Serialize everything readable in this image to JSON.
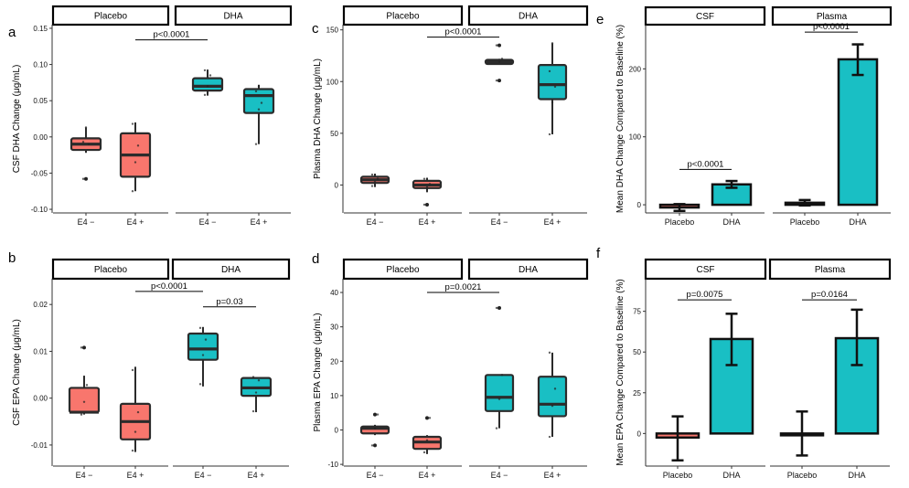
{
  "colors": {
    "placebo": "#F8766D",
    "dha": "#19BFC4",
    "edge": "#2b2b2b"
  },
  "chart_data": [
    {
      "panel": "a",
      "type": "box",
      "ylabel": "CSF DHA Change (μg/mL)",
      "ylim": [
        -0.105,
        0.155
      ],
      "yticks": [
        -0.1,
        -0.05,
        0.0,
        0.05,
        0.1,
        0.15
      ],
      "ytick_labels": [
        "-0.10",
        "-0.05",
        "0.00",
        "0.05",
        "0.10",
        "0.15"
      ],
      "facets": [
        "Placebo",
        "DHA"
      ],
      "groups": [
        {
          "facet": 0,
          "label": "E4 −",
          "color": "placebo",
          "q1": -0.018,
          "median": -0.01,
          "q3": -0.002,
          "whisker_low": -0.022,
          "whisker_high": 0.013,
          "points": [
            -0.058,
            0.013,
            -0.01,
            -0.007
          ],
          "outliers": [
            -0.058
          ]
        },
        {
          "facet": 0,
          "label": "E4 +",
          "color": "placebo",
          "q1": -0.055,
          "median": -0.025,
          "q3": 0.005,
          "whisker_low": -0.075,
          "whisker_high": 0.02,
          "points": [
            -0.075,
            -0.035,
            -0.012,
            0.018
          ],
          "outliers": []
        },
        {
          "facet": 1,
          "label": "E4 −",
          "color": "dha",
          "q1": 0.064,
          "median": 0.07,
          "q3": 0.081,
          "whisker_low": 0.057,
          "whisker_high": 0.093,
          "points": [
            0.058,
            0.07,
            0.085,
            0.092
          ],
          "outliers": []
        },
        {
          "facet": 1,
          "label": "E4 +",
          "color": "dha",
          "q1": 0.033,
          "median": 0.057,
          "q3": 0.066,
          "whisker_low": -0.01,
          "whisker_high": 0.072,
          "points": [
            -0.01,
            0.038,
            0.047,
            0.063,
            0.07
          ],
          "outliers": []
        }
      ],
      "brackets": [
        {
          "from": 1,
          "to": 2,
          "y": 0.134,
          "label": "p<0.0001"
        }
      ]
    },
    {
      "panel": "c",
      "type": "box",
      "ylabel": "Plasma DHA Change (μg/mL)",
      "ylim": [
        -27,
        155
      ],
      "yticks": [
        0,
        50,
        100,
        150
      ],
      "ytick_labels": [
        "0",
        "50",
        "100",
        "150"
      ],
      "facets": [
        "Placebo",
        "DHA"
      ],
      "groups": [
        {
          "facet": 0,
          "label": "E4 −",
          "color": "placebo",
          "q1": 2,
          "median": 5,
          "q3": 8,
          "whisker_low": -2,
          "whisker_high": 11,
          "points": [
            -1,
            3,
            6,
            10
          ],
          "outliers": []
        },
        {
          "facet": 0,
          "label": "E4 +",
          "color": "placebo",
          "q1": -3,
          "median": 0,
          "q3": 4,
          "whisker_low": -7,
          "whisker_high": 7,
          "points": [
            -19,
            -2,
            1,
            6
          ],
          "outliers": [
            -19
          ]
        },
        {
          "facet": 1,
          "label": "E4 −",
          "color": "dha",
          "q1": 117,
          "median": 119,
          "q3": 121,
          "whisker_low": 117,
          "whisker_high": 122,
          "points": [
            101,
            119,
            122,
            135
          ],
          "outliers": [
            101,
            135
          ]
        },
        {
          "facet": 1,
          "label": "E4 +",
          "color": "dha",
          "q1": 83,
          "median": 97,
          "q3": 116,
          "whisker_low": 49,
          "whisker_high": 137,
          "points": [
            49,
            80,
            95,
            110,
            137
          ],
          "outliers": []
        }
      ],
      "brackets": [
        {
          "from": 1,
          "to": 2,
          "y": 143,
          "label": "p<0.0001"
        }
      ]
    },
    {
      "panel": "e",
      "type": "bar",
      "ylabel": "Mean DHA Change Compared to Baseline (%)",
      "ylim": [
        -12,
        265
      ],
      "yticks": [
        0,
        100,
        200
      ],
      "ytick_labels": [
        "0",
        "100",
        "200"
      ],
      "facets": [
        "CSF",
        "Plasma"
      ],
      "groups": [
        {
          "facet": 0,
          "label": "Placebo",
          "color": "placebo",
          "value": -4,
          "err_low": -9,
          "err_high": 1
        },
        {
          "facet": 0,
          "label": "DHA",
          "color": "dha",
          "value": 30,
          "err_low": 25,
          "err_high": 35
        },
        {
          "facet": 1,
          "label": "Placebo",
          "color": "placebo",
          "value": 3,
          "err_low": -1,
          "err_high": 7
        },
        {
          "facet": 1,
          "label": "DHA",
          "color": "dha",
          "value": 214,
          "err_low": 191,
          "err_high": 236
        }
      ],
      "brackets": [
        {
          "from": 0,
          "to": 1,
          "y": 52,
          "label": "p<0.0001"
        },
        {
          "from": 2,
          "to": 3,
          "y": 254,
          "label": "p<0.0001"
        }
      ]
    },
    {
      "panel": "b",
      "type": "box",
      "ylabel": "CSF EPA Change (μg/mL)",
      "ylim": [
        -0.0145,
        0.0255
      ],
      "yticks": [
        -0.01,
        0.0,
        0.01,
        0.02
      ],
      "ytick_labels": [
        "-0.01",
        "0.00",
        "0.01",
        "0.02"
      ],
      "facets": [
        "Placebo",
        "DHA"
      ],
      "groups": [
        {
          "facet": 0,
          "label": "E4 −",
          "color": "placebo",
          "q1": -0.003,
          "median": -0.003,
          "q3": 0.0022,
          "whisker_low": -0.0035,
          "whisker_high": 0.0048,
          "points": [
            -0.0035,
            -0.0008,
            0.0028,
            0.0108
          ],
          "outliers": [
            0.0108
          ]
        },
        {
          "facet": 0,
          "label": "E4 +",
          "color": "placebo",
          "q1": -0.0088,
          "median": -0.005,
          "q3": -0.0012,
          "whisker_low": -0.0115,
          "whisker_high": 0.0067,
          "points": [
            -0.0112,
            -0.0072,
            -0.003,
            0.006
          ],
          "outliers": []
        },
        {
          "facet": 1,
          "label": "E4 −",
          "color": "dha",
          "q1": 0.0082,
          "median": 0.0105,
          "q3": 0.0138,
          "whisker_low": 0.0025,
          "whisker_high": 0.0152,
          "points": [
            0.003,
            0.0092,
            0.0125,
            0.015
          ],
          "outliers": []
        },
        {
          "facet": 1,
          "label": "E4 +",
          "color": "dha",
          "q1": 0.0005,
          "median": 0.0022,
          "q3": 0.0043,
          "whisker_low": -0.003,
          "whisker_high": 0.0045,
          "points": [
            -0.0028,
            0.0012,
            0.0038,
            0.0045
          ],
          "outliers": []
        }
      ],
      "brackets": [
        {
          "from": 1,
          "to": 2,
          "y": 0.0228,
          "label": "p<0.0001"
        },
        {
          "from": 2,
          "to": 3,
          "y": 0.0195,
          "label": "p=0.03"
        }
      ]
    },
    {
      "panel": "d",
      "type": "box",
      "ylabel": "Plasma EPA Change (μg/mL)",
      "ylim": [
        -10.5,
        44
      ],
      "yticks": [
        -10,
        0,
        10,
        20,
        30,
        40
      ],
      "ytick_labels": [
        "-10",
        "0",
        "10",
        "20",
        "30",
        "40"
      ],
      "facets": [
        "Placebo",
        "DHA"
      ],
      "groups": [
        {
          "facet": 0,
          "label": "E4 −",
          "color": "placebo",
          "q1": -1,
          "median": 0.5,
          "q3": 1,
          "whisker_low": -1.5,
          "whisker_high": 1.5,
          "points": [
            -4.5,
            0.5,
            4.5
          ],
          "outliers": [
            -4.5,
            4.5
          ]
        },
        {
          "facet": 0,
          "label": "E4 +",
          "color": "placebo",
          "q1": -5.5,
          "median": -3.5,
          "q3": -2,
          "whisker_low": -7,
          "whisker_high": -1.5,
          "points": [
            -6.5,
            -3,
            3.5
          ],
          "outliers": [
            3.5
          ]
        },
        {
          "facet": 1,
          "label": "E4 −",
          "color": "dha",
          "q1": 5.5,
          "median": 9.5,
          "q3": 16,
          "whisker_low": 0.5,
          "whisker_high": 16,
          "points": [
            0.5,
            9,
            16,
            35.5
          ],
          "outliers": [
            35.5
          ]
        },
        {
          "facet": 1,
          "label": "E4 +",
          "color": "dha",
          "q1": 4,
          "median": 7.5,
          "q3": 15.5,
          "whisker_low": -2,
          "whisker_high": 22.5,
          "points": [
            -2,
            7,
            12,
            22.5
          ],
          "outliers": []
        }
      ],
      "brackets": [
        {
          "from": 1,
          "to": 2,
          "y": 40,
          "label": "p=0.0021"
        }
      ]
    },
    {
      "panel": "f",
      "type": "bar",
      "ylabel": "Mean EPA Change Compared to Baseline (%)",
      "ylim": [
        -20,
        95
      ],
      "yticks": [
        0,
        25,
        50,
        75
      ],
      "ytick_labels": [
        "0",
        "25",
        "50",
        "75"
      ],
      "facets": [
        "CSF",
        "Plasma"
      ],
      "groups": [
        {
          "facet": 0,
          "label": "Placebo",
          "color": "placebo",
          "value": -2.5,
          "err_low": -16.5,
          "err_high": 10.5
        },
        {
          "facet": 0,
          "label": "DHA",
          "color": "dha",
          "value": 58,
          "err_low": 42,
          "err_high": 73.5
        },
        {
          "facet": 1,
          "label": "Placebo",
          "color": "placebo",
          "value": 0,
          "err_low": -13.5,
          "err_high": 13.5
        },
        {
          "facet": 1,
          "label": "DHA",
          "color": "dha",
          "value": 58.5,
          "err_low": 42,
          "err_high": 76
        }
      ],
      "brackets": [
        {
          "from": 0,
          "to": 1,
          "y": 82,
          "label": "p=0.0075"
        },
        {
          "from": 2,
          "to": 3,
          "y": 82,
          "label": "p=0.0164"
        }
      ]
    }
  ]
}
